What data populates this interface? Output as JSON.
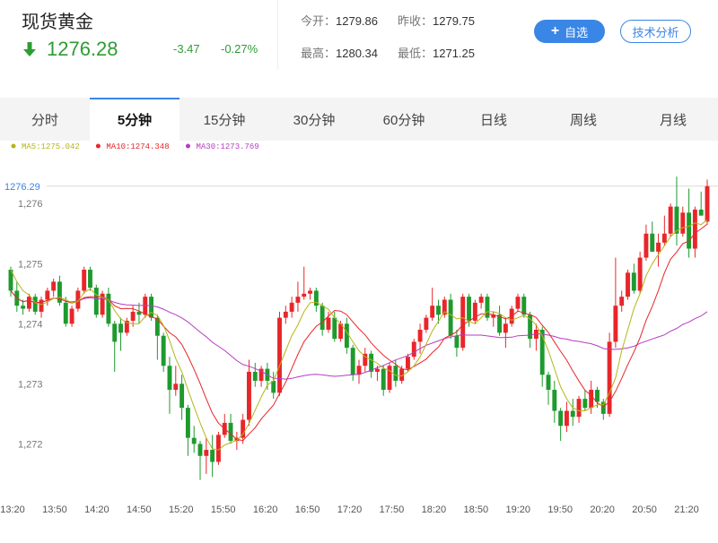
{
  "header": {
    "title": "现货黄金",
    "price": "1276.28",
    "change": "-3.47",
    "change_pct": "-0.27%",
    "open_label": "今开：",
    "open": "1279.86",
    "prev_close_label": "昨收：",
    "prev_close": "1279.75",
    "high_label": "最高：",
    "high": "1280.34",
    "low_label": "最低：",
    "low": "1271.25",
    "add_button": "自选",
    "tech_button": "技术分析",
    "down_color": "#2e9c35",
    "accent_color": "#3a86e6"
  },
  "tabs": [
    {
      "label": "分时",
      "active": false
    },
    {
      "label": "5分钟",
      "active": true
    },
    {
      "label": "15分钟",
      "active": false
    },
    {
      "label": "30分钟",
      "active": false
    },
    {
      "label": "60分钟",
      "active": false
    },
    {
      "label": "日线",
      "active": false
    },
    {
      "label": "周线",
      "active": false
    },
    {
      "label": "月线",
      "active": false
    }
  ],
  "chart_data": {
    "type": "candlestick",
    "interval": "5分钟",
    "legend": [
      {
        "name": "MA5",
        "text": "MA5:1275.042",
        "color": "#b5b518"
      },
      {
        "name": "MA10",
        "text": "MA10:1274.348",
        "color": "#e8262a"
      },
      {
        "name": "MA30",
        "text": "MA30:1273.769",
        "color": "#b63cc1"
      }
    ],
    "up_color": "#e8262a",
    "down_color": "#1e9a2e",
    "current_price_label": "1276.29",
    "current_price": 1276.29,
    "y_ticks": [
      "1,272",
      "1,273",
      "1,274",
      "1,275",
      "1,276"
    ],
    "y_tick_values": [
      1272,
      1273,
      1274,
      1275,
      1276
    ],
    "ylim": [
      1271.2,
      1276.6
    ],
    "x_ticks": [
      "13:20",
      "13:50",
      "14:20",
      "14:50",
      "15:20",
      "15:50",
      "16:20",
      "16:50",
      "17:20",
      "17:50",
      "18:20",
      "18:50",
      "19:20",
      "19:50",
      "20:20",
      "20:50",
      "21:20"
    ],
    "candles": [
      [
        1274.9,
        1274.95,
        1274.45,
        1274.55
      ],
      [
        1274.55,
        1274.7,
        1274.2,
        1274.3
      ],
      [
        1274.3,
        1274.4,
        1274.15,
        1274.25
      ],
      [
        1274.25,
        1274.5,
        1274.2,
        1274.45
      ],
      [
        1274.45,
        1274.5,
        1274.15,
        1274.2
      ],
      [
        1274.2,
        1274.45,
        1274.1,
        1274.4
      ],
      [
        1274.4,
        1274.6,
        1274.3,
        1274.55
      ],
      [
        1274.55,
        1274.75,
        1274.45,
        1274.7
      ],
      [
        1274.7,
        1274.8,
        1274.3,
        1274.35
      ],
      [
        1274.35,
        1274.45,
        1273.95,
        1274.0
      ],
      [
        1274.0,
        1274.3,
        1273.95,
        1274.25
      ],
      [
        1274.25,
        1274.6,
        1274.2,
        1274.55
      ],
      [
        1274.55,
        1274.95,
        1274.5,
        1274.9
      ],
      [
        1274.9,
        1274.95,
        1274.55,
        1274.6
      ],
      [
        1274.6,
        1274.65,
        1274.1,
        1274.15
      ],
      [
        1274.15,
        1274.55,
        1274.1,
        1274.5
      ],
      [
        1274.5,
        1274.6,
        1273.95,
        1274.0
      ],
      [
        1274.0,
        1274.05,
        1273.2,
        1273.7
      ],
      [
        1274.0,
        1274.1,
        1273.55,
        1273.85
      ],
      [
        1273.85,
        1274.1,
        1273.8,
        1274.05
      ],
      [
        1274.05,
        1274.3,
        1273.95,
        1274.2
      ],
      [
        1274.2,
        1274.35,
        1274.0,
        1274.15
      ],
      [
        1274.15,
        1274.5,
        1274.1,
        1274.45
      ],
      [
        1274.45,
        1274.5,
        1274.05,
        1274.1
      ],
      [
        1274.1,
        1274.15,
        1273.4,
        1273.8
      ],
      [
        1273.8,
        1273.85,
        1273.2,
        1273.3
      ],
      [
        1273.3,
        1273.45,
        1272.5,
        1272.9
      ],
      [
        1272.9,
        1273.3,
        1272.8,
        1273.0
      ],
      [
        1273.0,
        1273.15,
        1272.4,
        1272.6
      ],
      [
        1272.6,
        1272.65,
        1271.8,
        1272.1
      ],
      [
        1272.1,
        1272.3,
        1271.85,
        1272.0
      ],
      [
        1272.0,
        1272.05,
        1271.4,
        1271.8
      ],
      [
        1271.8,
        1272.1,
        1271.5,
        1271.9
      ],
      [
        1271.9,
        1272.15,
        1271.45,
        1271.7
      ],
      [
        1271.7,
        1272.2,
        1271.65,
        1272.15
      ],
      [
        1272.15,
        1272.5,
        1272.1,
        1272.35
      ],
      [
        1272.35,
        1272.5,
        1272.0,
        1272.05
      ],
      [
        1272.05,
        1272.2,
        1271.9,
        1272.1
      ],
      [
        1272.1,
        1272.5,
        1272.0,
        1272.4
      ],
      [
        1272.4,
        1273.4,
        1272.3,
        1273.2
      ],
      [
        1273.2,
        1273.35,
        1272.95,
        1273.05
      ],
      [
        1273.05,
        1273.3,
        1272.95,
        1273.25
      ],
      [
        1273.25,
        1273.35,
        1272.9,
        1273.05
      ],
      [
        1273.05,
        1273.2,
        1272.75,
        1272.85
      ],
      [
        1272.85,
        1274.2,
        1272.8,
        1274.1
      ],
      [
        1274.1,
        1274.3,
        1274.0,
        1274.2
      ],
      [
        1274.2,
        1274.45,
        1274.1,
        1274.35
      ],
      [
        1274.35,
        1274.7,
        1274.2,
        1274.45
      ],
      [
        1274.45,
        1274.95,
        1274.4,
        1274.5
      ],
      [
        1274.5,
        1274.6,
        1274.4,
        1274.55
      ],
      [
        1274.55,
        1274.6,
        1274.2,
        1274.3
      ],
      [
        1274.3,
        1274.35,
        1273.8,
        1273.9
      ],
      [
        1273.9,
        1274.2,
        1273.85,
        1274.1
      ],
      [
        1274.1,
        1274.2,
        1273.7,
        1273.75
      ],
      [
        1273.75,
        1274.05,
        1273.7,
        1274.0
      ],
      [
        1274.0,
        1274.1,
        1273.5,
        1273.6
      ],
      [
        1273.6,
        1273.65,
        1273.05,
        1273.15
      ],
      [
        1273.15,
        1273.4,
        1273.0,
        1273.3
      ],
      [
        1273.3,
        1273.6,
        1273.2,
        1273.5
      ],
      [
        1273.5,
        1273.55,
        1273.1,
        1273.2
      ],
      [
        1273.2,
        1273.3,
        1273.05,
        1273.25
      ],
      [
        1273.25,
        1273.3,
        1272.8,
        1272.9
      ],
      [
        1272.9,
        1273.35,
        1272.85,
        1273.3
      ],
      [
        1273.3,
        1273.4,
        1272.95,
        1273.05
      ],
      [
        1273.05,
        1273.3,
        1273.0,
        1273.25
      ],
      [
        1273.25,
        1273.5,
        1273.2,
        1273.45
      ],
      [
        1273.45,
        1273.75,
        1273.4,
        1273.7
      ],
      [
        1273.7,
        1274.0,
        1273.5,
        1273.9
      ],
      [
        1273.9,
        1274.15,
        1273.85,
        1274.1
      ],
      [
        1274.1,
        1274.6,
        1274.05,
        1274.3
      ],
      [
        1274.3,
        1274.4,
        1274.0,
        1274.15
      ],
      [
        1274.15,
        1274.45,
        1274.1,
        1274.4
      ],
      [
        1274.4,
        1274.5,
        1273.75,
        1273.8
      ],
      [
        1273.8,
        1273.9,
        1273.45,
        1273.6
      ],
      [
        1273.6,
        1274.5,
        1273.55,
        1274.45
      ],
      [
        1274.45,
        1274.5,
        1273.95,
        1274.05
      ],
      [
        1274.05,
        1274.4,
        1274.0,
        1274.35
      ],
      [
        1274.35,
        1274.5,
        1274.25,
        1274.45
      ],
      [
        1274.45,
        1274.5,
        1274.05,
        1274.1
      ],
      [
        1274.1,
        1274.2,
        1273.95,
        1274.15
      ],
      [
        1274.15,
        1274.3,
        1273.8,
        1273.85
      ],
      [
        1273.85,
        1274.1,
        1273.6,
        1274.0
      ],
      [
        1274.0,
        1274.3,
        1273.95,
        1274.25
      ],
      [
        1274.25,
        1274.5,
        1274.2,
        1274.45
      ],
      [
        1274.45,
        1274.5,
        1274.1,
        1274.15
      ],
      [
        1274.15,
        1274.2,
        1273.6,
        1273.75
      ],
      [
        1273.75,
        1274.0,
        1273.55,
        1273.9
      ],
      [
        1273.9,
        1273.95,
        1272.95,
        1273.15
      ],
      [
        1273.15,
        1273.2,
        1272.65,
        1272.9
      ],
      [
        1272.9,
        1273.05,
        1272.35,
        1272.55
      ],
      [
        1272.55,
        1272.6,
        1272.05,
        1272.3
      ],
      [
        1272.3,
        1272.7,
        1272.2,
        1272.55
      ],
      [
        1272.55,
        1272.75,
        1272.3,
        1272.45
      ],
      [
        1272.45,
        1272.8,
        1272.35,
        1272.75
      ],
      [
        1272.75,
        1272.9,
        1272.55,
        1272.6
      ],
      [
        1272.6,
        1273.05,
        1272.5,
        1272.9
      ],
      [
        1272.9,
        1272.95,
        1272.6,
        1272.7
      ],
      [
        1272.7,
        1272.75,
        1272.4,
        1272.5
      ],
      [
        1272.5,
        1273.85,
        1272.45,
        1273.7
      ],
      [
        1273.7,
        1275.1,
        1273.6,
        1274.3
      ],
      [
        1274.3,
        1274.55,
        1274.2,
        1274.45
      ],
      [
        1274.45,
        1274.9,
        1274.4,
        1274.85
      ],
      [
        1274.85,
        1275.0,
        1274.5,
        1274.55
      ],
      [
        1274.55,
        1275.2,
        1274.5,
        1275.1
      ],
      [
        1275.1,
        1275.65,
        1275.05,
        1275.5
      ],
      [
        1275.5,
        1275.7,
        1275.2,
        1275.2
      ],
      [
        1275.2,
        1275.5,
        1274.95,
        1275.35
      ],
      [
        1275.35,
        1275.8,
        1275.3,
        1275.5
      ],
      [
        1275.5,
        1276.0,
        1275.45,
        1275.95
      ],
      [
        1275.95,
        1276.45,
        1275.3,
        1275.5
      ],
      [
        1275.5,
        1275.95,
        1275.45,
        1275.85
      ],
      [
        1275.85,
        1276.25,
        1275.1,
        1275.25
      ],
      [
        1275.25,
        1275.95,
        1275.1,
        1275.9
      ],
      [
        1275.9,
        1276.2,
        1275.8,
        1275.8
      ],
      [
        1275.7,
        1276.4,
        1275.65,
        1276.29
      ]
    ],
    "ma5": [
      1274.9,
      1274.7,
      1274.55,
      1274.48,
      1274.35,
      1274.32,
      1274.36,
      1274.42,
      1274.44,
      1274.4,
      1274.35,
      1274.37,
      1274.52,
      1274.58,
      1274.48,
      1274.44,
      1274.4,
      1274.22,
      1274.08,
      1274.02,
      1274.0,
      1274.0,
      1274.12,
      1274.19,
      1274.14,
      1273.97,
      1273.72,
      1273.42,
      1273.2,
      1272.9,
      1272.62,
      1272.35,
      1272.1,
      1271.92,
      1271.9,
      1271.98,
      1272.02,
      1272.06,
      1272.16,
      1272.34,
      1272.56,
      1272.78,
      1272.98,
      1273.05,
      1273.3,
      1273.55,
      1273.8,
      1273.98,
      1274.2,
      1274.35,
      1274.36,
      1274.3,
      1274.24,
      1274.1,
      1274.0,
      1273.86,
      1273.7,
      1273.55,
      1273.45,
      1273.4,
      1273.34,
      1273.26,
      1273.22,
      1273.14,
      1273.13,
      1273.2,
      1273.3,
      1273.45,
      1273.66,
      1273.88,
      1274.04,
      1274.2,
      1274.15,
      1274.08,
      1274.1,
      1274.04,
      1274.0,
      1274.1,
      1274.2,
      1274.2,
      1274.17,
      1274.1,
      1274.06,
      1274.1,
      1274.14,
      1274.08,
      1273.98,
      1273.8,
      1273.55,
      1273.25,
      1272.95,
      1272.75,
      1272.6,
      1272.55,
      1272.55,
      1272.6,
      1272.65,
      1272.65,
      1272.85,
      1273.1,
      1273.55,
      1273.9,
      1274.25,
      1274.5,
      1274.8,
      1275.0,
      1275.15,
      1275.3,
      1275.45,
      1275.55,
      1275.6,
      1275.62,
      1275.68,
      1275.65,
      1275.73
    ]
  }
}
